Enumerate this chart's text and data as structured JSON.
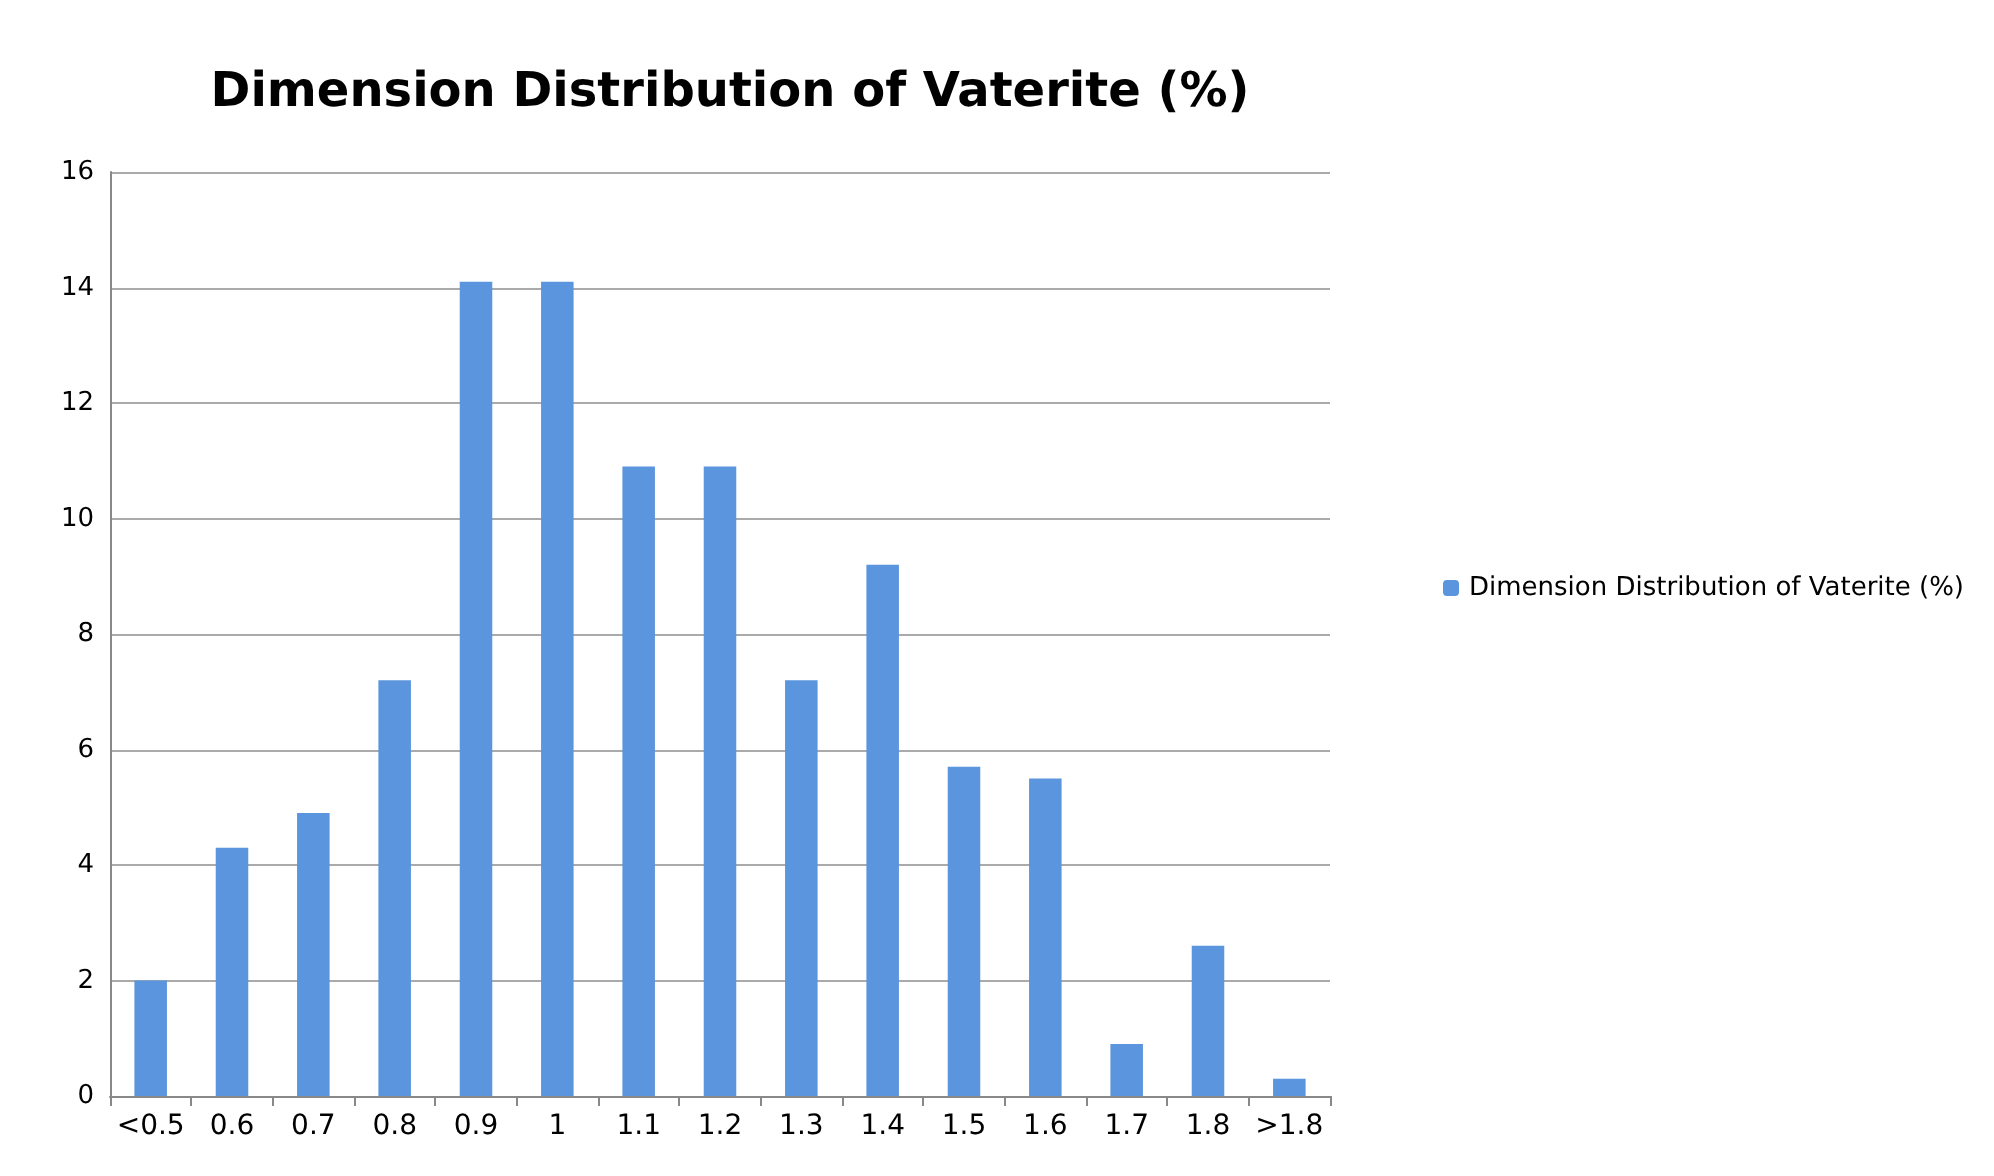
{
  "chart_data": {
    "type": "bar",
    "title": "Dimension Distribution of Vaterite (%)",
    "categories": [
      "<0.5",
      "0.6",
      "0.7",
      "0.8",
      "0.9",
      "1",
      "1.1",
      "1.2",
      "1.3",
      "1.4",
      "1.5",
      "1.6",
      "1.7",
      "1.8",
      ">1.8"
    ],
    "series": [
      {
        "name": "Dimension Distribution of Vaterite (%)",
        "color": "#5b95dd",
        "values": [
          2.0,
          4.3,
          4.9,
          7.2,
          14.1,
          14.1,
          10.9,
          10.9,
          7.2,
          9.2,
          5.7,
          5.5,
          0.9,
          2.6,
          0.3
        ]
      }
    ],
    "ylim": [
      0,
      16
    ],
    "yticks": [
      0,
      2,
      4,
      6,
      8,
      10,
      12,
      14,
      16
    ],
    "grid": "y",
    "legend": "right"
  }
}
